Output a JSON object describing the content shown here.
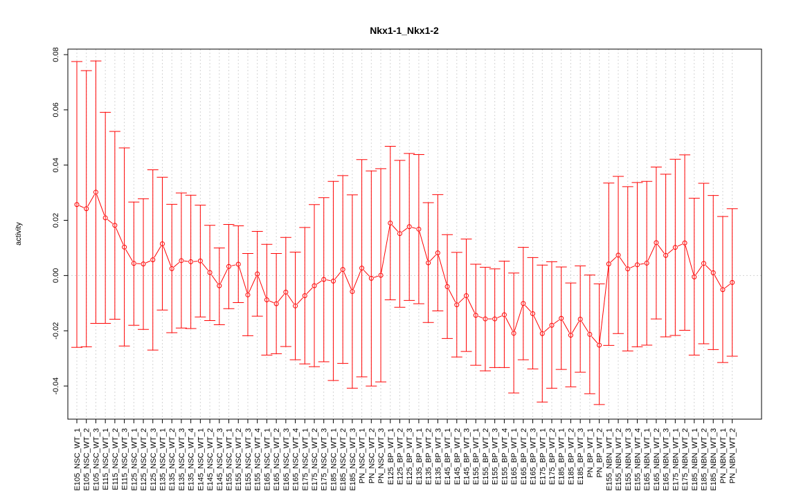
{
  "chart_data": {
    "type": "line",
    "title": "Nkx1-1_Nkx1-2",
    "xlabel": "",
    "ylabel": "activity",
    "ylim": [
      -0.052,
      0.082
    ],
    "yticks": [
      -0.04,
      -0.02,
      0.0,
      0.02,
      0.04,
      0.06,
      0.08
    ],
    "ytick_labels": [
      "-0.04",
      "-0.02",
      "0.00",
      "0.02",
      "0.04",
      "0.06",
      "0.08"
    ],
    "grid": true,
    "zero_line": true,
    "color": "#ff0000",
    "categories": [
      "E105_NSC_WT_1",
      "E105_NSC_WT_2",
      "E105_NSC_WT_3",
      "E115_NSC_WT_1",
      "E115_NSC_WT_2",
      "E115_NSC_WT_3",
      "E125_NSC_WT_1",
      "E125_NSC_WT_2",
      "E125_NSC_WT_3",
      "E135_NSC_WT_1",
      "E135_NSC_WT_2",
      "E135_NSC_WT_3",
      "E135_NSC_WT_4",
      "E145_NSC_WT_1",
      "E145_NSC_WT_2",
      "E145_NSC_WT_3",
      "E155_NSC_WT_1",
      "E155_NSC_WT_2",
      "E155_NSC_WT_3",
      "E155_NSC_WT_4",
      "E165_NSC_WT_1",
      "E165_NSC_WT_2",
      "E165_NSC_WT_3",
      "E165_NSC_WT_4",
      "E175_NSC_WT_1",
      "E175_NSC_WT_2",
      "E175_NSC_WT_3",
      "E185_NSC_WT_1",
      "E185_NSC_WT_2",
      "E185_NSC_WT_3",
      "PN_NSC_WT_1",
      "PN_NSC_WT_2",
      "PN_NSC_WT_3",
      "E125_BP_WT_1",
      "E125_BP_WT_2",
      "E125_BP_WT_3",
      "E135_BP_WT_1",
      "E135_BP_WT_2",
      "E135_BP_WT_3",
      "E145_BP_WT_1",
      "E145_BP_WT_2",
      "E145_BP_WT_3",
      "E155_BP_WT_1",
      "E155_BP_WT_2",
      "E155_BP_WT_3",
      "E155_BP_WT_4",
      "E165_BP_WT_1",
      "E165_BP_WT_2",
      "E165_BP_WT_3",
      "E175_BP_WT_1",
      "E175_BP_WT_2",
      "E185_BP_WT_1",
      "E185_BP_WT_2",
      "E185_BP_WT_3",
      "PN_BP_WT_1",
      "PN_BP_WT_2",
      "E155_NBN_WT_1",
      "E155_NBN_WT_2",
      "E155_NBN_WT_3",
      "E155_NBN_WT_4",
      "E165_NBN_WT_1",
      "E165_NBN_WT_2",
      "E165_NBN_WT_3",
      "E175_NBN_WT_1",
      "E175_NBN_WT_2",
      "E185_NBN_WT_1",
      "E185_NBN_WT_2",
      "E185_NBN_WT_3",
      "PN_NBN_WT_1",
      "PN_NBN_WT_2"
    ],
    "values": [
      0.0257,
      0.0242,
      0.0302,
      0.0209,
      0.0182,
      0.0103,
      0.0044,
      0.0042,
      0.0057,
      0.0115,
      0.0025,
      0.0054,
      0.005,
      0.0053,
      0.0011,
      -0.0037,
      0.0033,
      0.0041,
      -0.007,
      0.0006,
      -0.0088,
      -0.0102,
      -0.006,
      -0.011,
      -0.0073,
      -0.0037,
      -0.0014,
      -0.002,
      0.0022,
      -0.0058,
      0.0027,
      -0.001,
      0.0001,
      0.019,
      0.0152,
      0.0177,
      0.0168,
      0.0046,
      0.0082,
      -0.004,
      -0.0106,
      -0.0073,
      -0.0144,
      -0.0157,
      -0.0157,
      -0.0142,
      -0.0209,
      -0.0101,
      -0.0138,
      -0.021,
      -0.018,
      -0.0155,
      -0.0216,
      -0.0158,
      -0.0213,
      -0.0252,
      0.0042,
      0.0074,
      0.0024,
      0.0039,
      0.0045,
      0.0119,
      0.0073,
      0.0102,
      0.0118,
      -0.0005,
      0.0044,
      0.001,
      -0.0051,
      -0.0025
    ],
    "upper": [
      0.0775,
      0.0742,
      0.0777,
      0.0591,
      0.0522,
      0.0462,
      0.0266,
      0.0278,
      0.0383,
      0.0356,
      0.0258,
      0.0299,
      0.0291,
      0.0255,
      0.0182,
      0.01,
      0.0185,
      0.018,
      0.008,
      0.016,
      0.0113,
      0.008,
      0.0138,
      0.0085,
      0.0174,
      0.0257,
      0.0282,
      0.0341,
      0.0362,
      0.0292,
      0.042,
      0.0379,
      0.0387,
      0.0468,
      0.0417,
      0.0442,
      0.0438,
      0.0264,
      0.0293,
      0.0148,
      0.0084,
      0.0132,
      0.0041,
      0.003,
      0.0024,
      0.0052,
      0.0009,
      0.0102,
      0.0065,
      0.0038,
      0.005,
      0.0031,
      -0.0027,
      0.0035,
      0.0002,
      -0.003,
      0.0335,
      0.0359,
      0.0322,
      0.0337,
      0.0341,
      0.0393,
      0.0367,
      0.0421,
      0.0437,
      0.028,
      0.0334,
      0.029,
      0.0214,
      0.0242
    ],
    "lower": [
      -0.026,
      -0.0258,
      -0.0173,
      -0.0173,
      -0.0158,
      -0.0255,
      -0.018,
      -0.0195,
      -0.027,
      -0.0125,
      -0.0207,
      -0.019,
      -0.0192,
      -0.015,
      -0.0163,
      -0.0178,
      -0.012,
      -0.0098,
      -0.0218,
      -0.0147,
      -0.0288,
      -0.0283,
      -0.0257,
      -0.0305,
      -0.032,
      -0.033,
      -0.0312,
      -0.038,
      -0.0318,
      -0.0408,
      -0.0367,
      -0.04,
      -0.0385,
      -0.0088,
      -0.0115,
      -0.009,
      -0.0102,
      -0.017,
      -0.0128,
      -0.0228,
      -0.0295,
      -0.0275,
      -0.0325,
      -0.0345,
      -0.0333,
      -0.0333,
      -0.0425,
      -0.0305,
      -0.0338,
      -0.0458,
      -0.0408,
      -0.034,
      -0.0403,
      -0.035,
      -0.0428,
      -0.0467,
      -0.0253,
      -0.021,
      -0.0273,
      -0.0258,
      -0.0252,
      -0.0157,
      -0.0222,
      -0.0217,
      -0.0198,
      -0.0288,
      -0.0247,
      -0.0268,
      -0.0315,
      -0.0292
    ]
  }
}
